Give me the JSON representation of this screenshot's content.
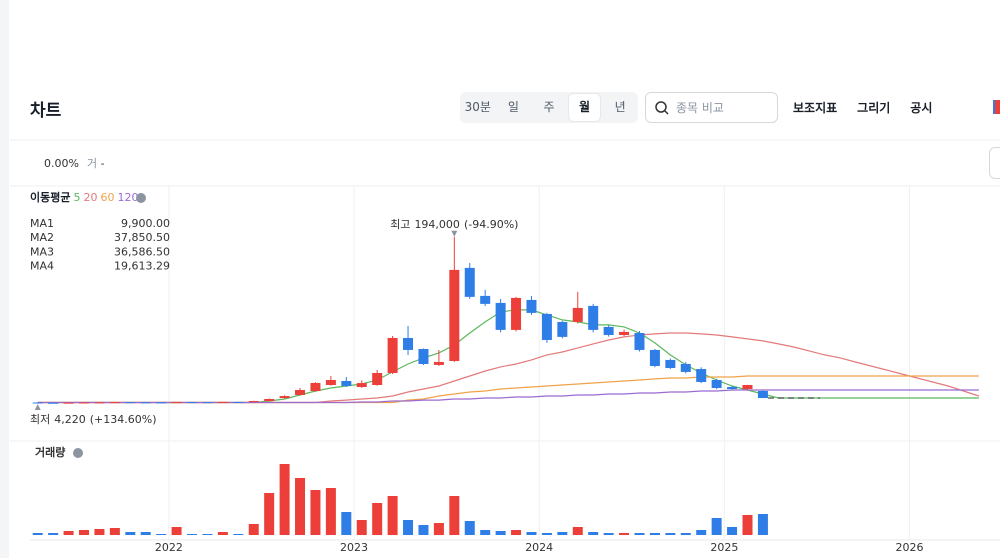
{
  "header": {
    "title": "차트",
    "intervals": [
      "30분",
      "일",
      "주",
      "월",
      "년"
    ],
    "active_interval": 3,
    "search_placeholder": "종목 비교",
    "tools": [
      "보조지표",
      "그리기",
      "공시"
    ]
  },
  "status": {
    "change": "0.00%",
    "label": "거",
    "value": "-"
  },
  "chart_data": {
    "type": "candlestick",
    "categories": [
      null,
      null,
      null,
      null,
      null,
      null,
      null,
      null,
      null,
      "2022",
      null,
      null,
      null,
      null,
      null,
      null,
      null,
      null,
      null,
      null,
      null,
      "2023",
      null,
      null,
      null,
      null,
      null,
      null,
      null,
      null,
      null,
      null,
      null,
      "2024",
      null,
      null,
      null,
      null,
      null,
      null,
      null,
      null,
      null,
      null,
      null,
      "2025",
      null,
      null,
      null,
      null,
      null,
      null,
      null,
      null,
      null,
      null,
      null,
      "2026",
      null,
      null,
      null,
      null,
      null
    ],
    "open": [
      4800,
      4500,
      4400,
      4600,
      4800,
      5000,
      5200,
      5000,
      4900,
      4850,
      5300,
      5200,
      5150,
      5400,
      5300,
      6500,
      9900,
      13400,
      17900,
      24800,
      29400,
      22500,
      24800,
      38500,
      78500,
      65900,
      47700,
      52200,
      158500,
      126500,
      118500,
      87700,
      121900,
      105900,
      96800,
      96800,
      115100,
      91100,
      81900,
      84200,
      64800,
      53400,
      48800,
      43000,
      30500,
      22500,
      20200,
      18000,
      null,
      null,
      null,
      null,
      null,
      null,
      null,
      null,
      null,
      null,
      null,
      null,
      null,
      null,
      null
    ],
    "high": [
      5000,
      4700,
      4700,
      4900,
      5100,
      5400,
      5300,
      5100,
      5000,
      5400,
      5350,
      5300,
      5500,
      5450,
      6800,
      9500,
      13000,
      21400,
      28000,
      35100,
      33900,
      30000,
      41900,
      80800,
      92200,
      66500,
      64800,
      194000,
      164200,
      133400,
      123000,
      125400,
      126500,
      107100,
      98000,
      131100,
      117400,
      93000,
      88000,
      86500,
      66000,
      55000,
      51000,
      45000,
      32000,
      24000,
      25000,
      18500,
      null,
      null,
      null,
      null,
      null,
      null,
      null,
      null,
      null,
      null,
      null,
      null,
      null,
      null,
      null
    ],
    "low": [
      4220,
      4300,
      4300,
      4500,
      4700,
      4900,
      4900,
      4800,
      4800,
      4800,
      5100,
      5100,
      5100,
      5200,
      5250,
      6200,
      9500,
      12800,
      17000,
      24000,
      22500,
      21500,
      24000,
      37400,
      59100,
      47600,
      46500,
      51100,
      123000,
      115000,
      85000,
      86000,
      104800,
      73000,
      78000,
      95000,
      85000,
      80000,
      80500,
      63000,
      45000,
      43000,
      38000,
      27000,
      20000,
      19500,
      19000,
      9900,
      null,
      null,
      null,
      null,
      null,
      null,
      null,
      null,
      null,
      null,
      null,
      null,
      null,
      null,
      null
    ],
    "close": [
      4500,
      4400,
      4600,
      4800,
      5000,
      5200,
      5000,
      4900,
      4850,
      5300,
      5200,
      5150,
      5400,
      5300,
      6500,
      8800,
      12200,
      19100,
      27100,
      30500,
      23700,
      27000,
      38500,
      78500,
      64800,
      48800,
      51100,
      156200,
      125400,
      117400,
      87700,
      124200,
      107100,
      76200,
      79700,
      112800,
      87700,
      81900,
      85400,
      64800,
      46500,
      44200,
      39700,
      28200,
      21400,
      20200,
      24800,
      9900,
      null,
      null,
      null,
      null,
      null,
      null,
      null,
      null,
      null,
      null,
      null,
      null,
      null,
      null,
      null
    ],
    "up_color": "#ec3f3a",
    "down_color": "#2f7de7",
    "ylim": [
      -38000,
      236000
    ],
    "grid": true,
    "ma_title": "이동평균",
    "series": [
      {
        "name": "MA1",
        "period": 5,
        "color": "#5cb85c",
        "value": 9900,
        "value_label": "9,900.00",
        "values": [
          4800,
          4800,
          4800,
          4800,
          4800,
          4800,
          4800,
          4800,
          4800,
          4800,
          4800,
          4800,
          4800,
          4800,
          4800,
          6500,
          8800,
          13400,
          17900,
          21400,
          23700,
          25900,
          30500,
          39700,
          48800,
          55700,
          61400,
          70500,
          84200,
          96800,
          108200,
          110500,
          110500,
          104800,
          99100,
          96800,
          93400,
          93400,
          91100,
          84200,
          72800,
          59100,
          47700,
          38500,
          30500,
          23700,
          19100,
          14500,
          9900,
          9900,
          9900,
          9900,
          9900,
          9900,
          9900,
          9900,
          9900,
          9900,
          9900,
          9900,
          9900,
          9900,
          null
        ]
      },
      {
        "name": "MA2",
        "period": 20,
        "color": "#e47a7a",
        "value": 37850.5,
        "value_label": "37,850.50",
        "values": [
          4800,
          4800,
          4800,
          4800,
          4800,
          4800,
          4800,
          4800,
          4800,
          4800,
          4800,
          4800,
          4800,
          4800,
          4800,
          4800,
          4800,
          4800,
          4800,
          6500,
          7600,
          8800,
          9900,
          12200,
          16800,
          20200,
          23700,
          29400,
          35100,
          40800,
          45400,
          48800,
          53400,
          59100,
          62500,
          67100,
          71700,
          76200,
          79700,
          81900,
          83100,
          84200,
          84200,
          83100,
          81900,
          79700,
          77400,
          75100,
          71700,
          68200,
          63700,
          59100,
          55700,
          51100,
          46500,
          41900,
          37400,
          32800,
          28200,
          23700,
          17900,
          12200,
          null
        ]
      },
      {
        "name": "MA3",
        "period": 60,
        "color": "#f0a24a",
        "value": 36586.5,
        "value_label": "36,586.50",
        "values": [
          4800,
          4800,
          4800,
          4800,
          4800,
          4800,
          4800,
          4800,
          4800,
          4800,
          4800,
          4800,
          4800,
          4800,
          4800,
          4800,
          4800,
          4800,
          4800,
          4800,
          4800,
          4800,
          4800,
          4800,
          7600,
          8800,
          12200,
          14500,
          16800,
          17900,
          20200,
          21400,
          22500,
          23700,
          24800,
          25900,
          27100,
          28200,
          29400,
          30500,
          31700,
          32800,
          32800,
          33900,
          33900,
          33900,
          35100,
          35100,
          35100,
          35100,
          35100,
          35100,
          35100,
          35100,
          35100,
          35100,
          35100,
          35100,
          35100,
          35100,
          35100,
          35100,
          null
        ]
      },
      {
        "name": "MA4",
        "period": 120,
        "color": "#9b6bd1",
        "value": 19613.29,
        "value_label": "19,613.29",
        "values": [
          4800,
          4800,
          4800,
          4800,
          4800,
          4800,
          4800,
          4800,
          4800,
          4800,
          4800,
          4800,
          4800,
          4800,
          4800,
          4800,
          4800,
          4800,
          4800,
          4800,
          4800,
          5400,
          5400,
          6500,
          6500,
          7600,
          7600,
          8800,
          8800,
          9900,
          9900,
          11100,
          11100,
          12200,
          12200,
          13400,
          13400,
          14500,
          14500,
          15700,
          15700,
          16800,
          16800,
          17900,
          17900,
          19100,
          19100,
          19100,
          19100,
          19100,
          19100,
          19100,
          19100,
          19100,
          19100,
          19100,
          19100,
          19100,
          19100,
          19100,
          19100,
          19100,
          null
        ]
      }
    ],
    "high_mark": {
      "text": "최고",
      "value": 194000,
      "value_label": "194,000",
      "change": "(-94.90%)"
    },
    "low_mark": {
      "text": "최저",
      "value": 4220,
      "value_label": "4,220",
      "change": "(+134.60%)"
    },
    "volume": {
      "title": "거래량",
      "ylim": [
        0,
        80
      ],
      "values": [
        2,
        2,
        4,
        5,
        6,
        7,
        3,
        3,
        1,
        8,
        1,
        1,
        3,
        1,
        11,
        42,
        71,
        57,
        45,
        47,
        23,
        15,
        32,
        39,
        15,
        10,
        12,
        39,
        14,
        5,
        4,
        5,
        3,
        2,
        3,
        8,
        3,
        2,
        2,
        2,
        2,
        2,
        2,
        5,
        17,
        8,
        20,
        21,
        null,
        null,
        null,
        null,
        null,
        null,
        null,
        null,
        null,
        null,
        null,
        null,
        null,
        null,
        null
      ]
    }
  }
}
